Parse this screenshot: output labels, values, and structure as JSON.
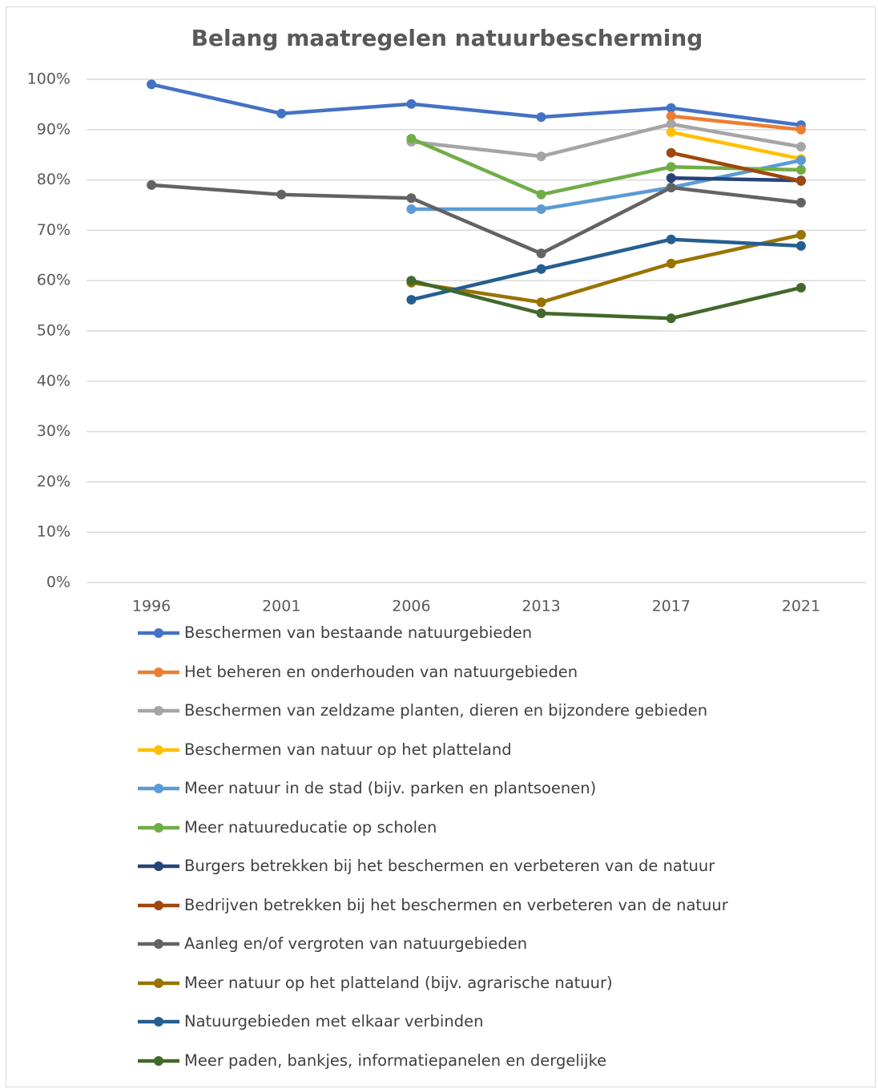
{
  "chart_data": {
    "type": "line",
    "title": "Belang maatregelen natuurbescherming",
    "categories": [
      "1996",
      "2001",
      "2006",
      "2013",
      "2017",
      "2021"
    ],
    "ylim": [
      0,
      100
    ],
    "yticks": [
      {
        "value": 0,
        "label": "0%"
      },
      {
        "value": 10,
        "label": "10%"
      },
      {
        "value": 20,
        "label": "20%"
      },
      {
        "value": 30,
        "label": "30%"
      },
      {
        "value": 40,
        "label": "40%"
      },
      {
        "value": 50,
        "label": "50%"
      },
      {
        "value": 60,
        "label": "60%"
      },
      {
        "value": 70,
        "label": "70%"
      },
      {
        "value": 80,
        "label": "80%"
      },
      {
        "value": 90,
        "label": "90%"
      },
      {
        "value": 100,
        "label": "100%"
      }
    ],
    "grid": true,
    "legend": "bottom",
    "series": [
      {
        "name": "Beschermen van bestaande natuurgebieden",
        "color": "#4472c4",
        "values": [
          99.0,
          93.2,
          95.1,
          92.5,
          94.3,
          90.9
        ]
      },
      {
        "name": "Het beheren en onderhouden van natuurgebieden",
        "color": "#ed7d31",
        "values": [
          null,
          null,
          null,
          null,
          92.7,
          90.0
        ]
      },
      {
        "name": "Beschermen van zeldzame planten, dieren en bijzondere gebieden",
        "color": "#a5a5a5",
        "values": [
          null,
          null,
          87.6,
          84.7,
          91.1,
          86.6
        ]
      },
      {
        "name": "Beschermen van natuur op het platteland",
        "color": "#ffc000",
        "values": [
          null,
          null,
          null,
          null,
          89.5,
          84.2
        ]
      },
      {
        "name": "Meer natuur in de stad (bijv. parken en plantsoenen)",
        "color": "#5b9bd5",
        "values": [
          null,
          null,
          74.2,
          74.2,
          78.5,
          83.9
        ]
      },
      {
        "name": "Meer natuureducatie op scholen",
        "color": "#70ad47",
        "values": [
          null,
          null,
          88.2,
          77.1,
          82.6,
          82.0
        ]
      },
      {
        "name": "Burgers betrekken bij het beschermen en verbeteren van de natuur",
        "color": "#264478",
        "values": [
          null,
          null,
          null,
          null,
          80.4,
          79.9
        ]
      },
      {
        "name": "Bedrijven betrekken bij het beschermen en verbeteren van de natuur",
        "color": "#9e480e",
        "values": [
          null,
          null,
          null,
          null,
          85.4,
          79.8
        ]
      },
      {
        "name": "Aanleg en/of vergroten van natuurgebieden",
        "color": "#636363",
        "values": [
          79.0,
          77.1,
          76.4,
          65.4,
          78.5,
          75.5
        ]
      },
      {
        "name": "Meer natuur op het platteland (bijv. agrarische natuur)",
        "color": "#997300",
        "values": [
          null,
          null,
          59.6,
          55.7,
          63.4,
          69.1
        ]
      },
      {
        "name": "Natuurgebieden met elkaar verbinden",
        "color": "#255e91",
        "values": [
          null,
          null,
          56.2,
          62.3,
          68.2,
          66.9
        ]
      },
      {
        "name": "Meer paden, bankjes, informatiepanelen en dergelijke",
        "color": "#43682b",
        "values": [
          null,
          null,
          60.0,
          53.5,
          52.5,
          58.6
        ]
      }
    ]
  }
}
